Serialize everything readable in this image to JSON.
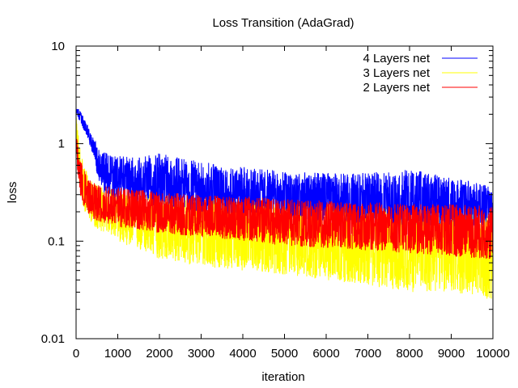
{
  "chart_data": {
    "type": "line",
    "title": "Loss Transition (AdaGrad)",
    "xlabel": "iteration",
    "ylabel": "loss",
    "xlim": [
      0,
      10000
    ],
    "ylim": [
      0.01,
      10
    ],
    "yscale": "log",
    "grid": false,
    "legend_position": "top-right",
    "x_ticks": [
      "0",
      "1000",
      "2000",
      "3000",
      "4000",
      "5000",
      "6000",
      "7000",
      "8000",
      "9000",
      "10000"
    ],
    "y_ticks": [
      "0.01",
      "0.1",
      "1",
      "10"
    ],
    "series": [
      {
        "name": "4 Layers net",
        "color": "#0000ff",
        "x": [
          0,
          100,
          200,
          300,
          400,
          500,
          600,
          800,
          1000,
          1500,
          2000,
          3000,
          4000,
          5000,
          6000,
          7000,
          8000,
          9000,
          10000
        ],
        "center": [
          2.25,
          1.9,
          1.55,
          1.25,
          0.95,
          0.72,
          0.55,
          0.48,
          0.45,
          0.43,
          0.4,
          0.36,
          0.33,
          0.3,
          0.29,
          0.27,
          0.26,
          0.24,
          0.23
        ],
        "low": [
          2.0,
          1.65,
          1.35,
          1.05,
          0.78,
          0.5,
          0.34,
          0.27,
          0.25,
          0.24,
          0.22,
          0.2,
          0.18,
          0.17,
          0.16,
          0.15,
          0.145,
          0.14,
          0.14
        ],
        "high": [
          2.45,
          2.15,
          1.8,
          1.5,
          1.2,
          1.0,
          0.85,
          0.78,
          0.75,
          0.72,
          0.8,
          0.65,
          0.58,
          0.52,
          0.5,
          0.5,
          0.55,
          0.45,
          0.38
        ]
      },
      {
        "name": "3 Layers net",
        "color": "#ffff00",
        "x": [
          0,
          100,
          200,
          300,
          400,
          500,
          800,
          1000,
          1500,
          2000,
          3000,
          4000,
          5000,
          6000,
          7000,
          8000,
          9000,
          10000
        ],
        "center": [
          1.5,
          0.55,
          0.35,
          0.28,
          0.24,
          0.22,
          0.2,
          0.18,
          0.16,
          0.15,
          0.13,
          0.12,
          0.11,
          0.1,
          0.095,
          0.09,
          0.085,
          0.08
        ],
        "low": [
          1.0,
          0.3,
          0.2,
          0.17,
          0.15,
          0.13,
          0.12,
          0.1,
          0.08,
          0.065,
          0.055,
          0.05,
          0.045,
          0.04,
          0.035,
          0.03,
          0.03,
          0.025
        ],
        "high": [
          1.9,
          0.9,
          0.6,
          0.45,
          0.4,
          0.38,
          0.35,
          0.33,
          0.32,
          0.3,
          0.28,
          0.27,
          0.25,
          0.24,
          0.23,
          0.22,
          0.22,
          0.2
        ]
      },
      {
        "name": "2 Layers net",
        "color": "#ff0000",
        "x": [
          0,
          100,
          200,
          300,
          400,
          500,
          800,
          1000,
          1500,
          2000,
          3000,
          4000,
          5000,
          6000,
          7000,
          8000,
          9000,
          10000
        ],
        "center": [
          1.05,
          0.45,
          0.35,
          0.3,
          0.28,
          0.26,
          0.24,
          0.23,
          0.21,
          0.2,
          0.19,
          0.18,
          0.165,
          0.155,
          0.15,
          0.145,
          0.14,
          0.13
        ],
        "low": [
          0.7,
          0.28,
          0.22,
          0.19,
          0.17,
          0.16,
          0.15,
          0.14,
          0.13,
          0.12,
          0.11,
          0.1,
          0.09,
          0.085,
          0.08,
          0.075,
          0.07,
          0.065
        ],
        "high": [
          1.3,
          0.7,
          0.55,
          0.45,
          0.42,
          0.4,
          0.38,
          0.36,
          0.34,
          0.32,
          0.3,
          0.29,
          0.27,
          0.26,
          0.25,
          0.24,
          0.24,
          0.23
        ]
      }
    ]
  }
}
